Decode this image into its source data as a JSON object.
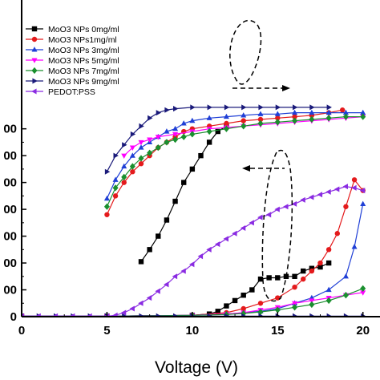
{
  "chart_data": {
    "type": "line",
    "xlabel": "Voltage (V)",
    "ylabel": "",
    "xlim": [
      0,
      21
    ],
    "ylim": [
      0,
      1180
    ],
    "xticks": [
      0,
      5,
      10,
      15,
      20
    ],
    "xtick_labels": [
      "0",
      "5",
      "10",
      "15",
      "20"
    ],
    "yticks": [
      0,
      100,
      200,
      300,
      400,
      500,
      600,
      700
    ],
    "ytick_labels": [
      "0",
      "00",
      "00",
      "00",
      "00",
      "00",
      "00",
      "00"
    ],
    "legend_position": "top-left",
    "grid": false,
    "series": [
      {
        "name": "MoO3 NPs 0mg/ml",
        "color": "#000000",
        "marker": "square",
        "groups": [
          [
            [
              7,
              205
            ],
            [
              7.5,
              250
            ],
            [
              8,
              300
            ],
            [
              8.5,
              360
            ],
            [
              9,
              430
            ],
            [
              9.5,
              500
            ],
            [
              10,
              550
            ],
            [
              10.5,
              600
            ],
            [
              11,
              650
            ],
            [
              11.5,
              690
            ],
            [
              12,
              710
            ]
          ],
          [
            [
              0,
              2
            ],
            [
              5,
              2
            ],
            [
              10,
              5
            ],
            [
              11,
              10
            ],
            [
              11.5,
              20
            ],
            [
              12,
              40
            ],
            [
              12.5,
              60
            ],
            [
              13,
              80
            ],
            [
              13.5,
              100
            ],
            [
              14,
              140
            ],
            [
              14.5,
              145
            ],
            [
              15,
              145
            ],
            [
              15.5,
              150
            ],
            [
              16,
              150
            ],
            [
              16.5,
              170
            ],
            [
              17,
              180
            ],
            [
              17.5,
              185
            ],
            [
              18,
              200
            ]
          ]
        ]
      },
      {
        "name": "MoO3 NPs1mg/ml",
        "color": "#e41a1c",
        "marker": "circle",
        "groups": [
          [
            [
              5,
              380
            ],
            [
              5.5,
              450
            ],
            [
              6,
              500
            ],
            [
              6.5,
              540
            ],
            [
              7,
              570
            ],
            [
              7.5,
              600
            ],
            [
              8,
              630
            ],
            [
              8.5,
              650
            ],
            [
              9,
              670
            ],
            [
              9.5,
              690
            ],
            [
              10,
              700
            ],
            [
              11,
              710
            ],
            [
              12,
              720
            ],
            [
              13,
              730
            ],
            [
              14,
              735
            ],
            [
              15,
              740
            ],
            [
              16,
              745
            ],
            [
              17,
              750
            ],
            [
              18,
              760
            ],
            [
              18.8,
              770
            ]
          ],
          [
            [
              0,
              2
            ],
            [
              5,
              2
            ],
            [
              10,
              5
            ],
            [
              12,
              15
            ],
            [
              13,
              30
            ],
            [
              14,
              50
            ],
            [
              15,
              70
            ],
            [
              16,
              110
            ],
            [
              16.5,
              140
            ],
            [
              17,
              170
            ],
            [
              17.5,
              200
            ],
            [
              18,
              250
            ],
            [
              18.5,
              310
            ],
            [
              19,
              410
            ],
            [
              19.5,
              510
            ],
            [
              20,
              470
            ]
          ]
        ]
      },
      {
        "name": "MoO3 NPs 3mg/ml",
        "color": "#1f3fd6",
        "marker": "triangle-up",
        "groups": [
          [
            [
              5,
              440
            ],
            [
              5.5,
              510
            ],
            [
              6,
              560
            ],
            [
              6.5,
              600
            ],
            [
              7,
              630
            ],
            [
              7.5,
              650
            ],
            [
              8,
              670
            ],
            [
              8.5,
              690
            ],
            [
              9,
              700
            ],
            [
              9.5,
              720
            ],
            [
              10,
              730
            ],
            [
              11,
              740
            ],
            [
              12,
              745
            ],
            [
              13,
              750
            ],
            [
              14,
              755
            ],
            [
              15,
              755
            ],
            [
              16,
              760
            ],
            [
              17,
              760
            ],
            [
              18,
              760
            ],
            [
              19,
              760
            ],
            [
              20,
              760
            ]
          ],
          [
            [
              0,
              2
            ],
            [
              5,
              2
            ],
            [
              10,
              5
            ],
            [
              12,
              10
            ],
            [
              14,
              20
            ],
            [
              15,
              30
            ],
            [
              16,
              50
            ],
            [
              17,
              70
            ],
            [
              18,
              100
            ],
            [
              19,
              150
            ],
            [
              19.5,
              260
            ],
            [
              20,
              420
            ]
          ]
        ]
      },
      {
        "name": "MoO3 NPs 5mg/ml",
        "color": "#ff00ff",
        "marker": "triangle-down",
        "groups": [
          [
            [
              6,
              600
            ],
            [
              6.5,
              630
            ],
            [
              7,
              650
            ],
            [
              7.5,
              660
            ],
            [
              8,
              670
            ],
            [
              9,
              680
            ],
            [
              10,
              690
            ],
            [
              11,
              700
            ],
            [
              12,
              705
            ],
            [
              13,
              710
            ],
            [
              14,
              715
            ],
            [
              15,
              720
            ],
            [
              16,
              725
            ],
            [
              17,
              730
            ],
            [
              18,
              735
            ],
            [
              19,
              740
            ],
            [
              20,
              745
            ]
          ],
          [
            [
              0,
              2
            ],
            [
              5,
              2
            ],
            [
              10,
              5
            ],
            [
              12,
              10
            ],
            [
              13,
              15
            ],
            [
              14,
              25
            ],
            [
              15,
              35
            ],
            [
              16,
              50
            ],
            [
              17,
              60
            ],
            [
              18,
              70
            ],
            [
              19,
              80
            ],
            [
              20,
              90
            ]
          ]
        ]
      },
      {
        "name": "MoO3 NPs 7mg/ml",
        "color": "#1a8f2e",
        "marker": "diamond",
        "groups": [
          [
            [
              5,
              410
            ],
            [
              5.5,
              480
            ],
            [
              6,
              520
            ],
            [
              6.5,
              560
            ],
            [
              7,
              590
            ],
            [
              7.5,
              610
            ],
            [
              8,
              630
            ],
            [
              8.5,
              650
            ],
            [
              9,
              660
            ],
            [
              9.5,
              670
            ],
            [
              10,
              680
            ],
            [
              11,
              690
            ],
            [
              12,
              700
            ],
            [
              13,
              710
            ],
            [
              14,
              720
            ],
            [
              15,
              725
            ],
            [
              16,
              730
            ],
            [
              17,
              735
            ],
            [
              18,
              740
            ],
            [
              19,
              745
            ],
            [
              20,
              745
            ]
          ],
          [
            [
              0,
              2
            ],
            [
              5,
              2
            ],
            [
              10,
              5
            ],
            [
              12,
              8
            ],
            [
              13,
              12
            ],
            [
              14,
              18
            ],
            [
              15,
              25
            ],
            [
              16,
              35
            ],
            [
              17,
              45
            ],
            [
              18,
              60
            ],
            [
              19,
              80
            ],
            [
              20,
              105
            ]
          ]
        ]
      },
      {
        "name": "MoO3 NPs 9mg/ml",
        "color": "#1a1a7a",
        "marker": "triangle-right",
        "groups": [
          [
            [
              5,
              540
            ],
            [
              5.5,
              600
            ],
            [
              6,
              640
            ],
            [
              6.5,
              680
            ],
            [
              7,
              710
            ],
            [
              7.5,
              740
            ],
            [
              8,
              760
            ],
            [
              8.5,
              770
            ],
            [
              9,
              775
            ],
            [
              10,
              780
            ],
            [
              11,
              780
            ],
            [
              12,
              780
            ],
            [
              13,
              780
            ],
            [
              14,
              780
            ],
            [
              15,
              780
            ],
            [
              16,
              780
            ],
            [
              17,
              780
            ],
            [
              18,
              780
            ]
          ],
          [
            [
              0,
              2
            ],
            [
              1,
              2
            ],
            [
              2,
              2
            ],
            [
              3,
              2
            ],
            [
              4,
              2
            ],
            [
              5,
              2
            ],
            [
              6,
              2
            ],
            [
              7,
              2
            ],
            [
              8,
              2
            ],
            [
              9,
              2
            ],
            [
              10,
              2
            ],
            [
              11,
              2
            ],
            [
              12,
              2
            ],
            [
              13,
              2
            ],
            [
              14,
              2
            ],
            [
              15,
              2
            ],
            [
              16,
              2
            ],
            [
              17,
              2
            ],
            [
              18,
              2
            ],
            [
              19,
              2
            ],
            [
              20,
              2
            ]
          ]
        ]
      },
      {
        "name": "PEDOT:PSS",
        "color": "#8a2be2",
        "marker": "triangle-left",
        "groups": [
          [
            [
              0,
              2
            ],
            [
              1,
              2
            ],
            [
              2,
              2
            ],
            [
              3,
              2
            ],
            [
              4,
              2
            ],
            [
              5,
              2
            ],
            [
              5.5,
              5
            ],
            [
              6,
              15
            ],
            [
              6.5,
              30
            ],
            [
              7,
              50
            ],
            [
              7.5,
              70
            ],
            [
              8,
              95
            ],
            [
              8.5,
              120
            ],
            [
              9,
              150
            ],
            [
              9.5,
              170
            ],
            [
              10,
              195
            ],
            [
              10.5,
              225
            ],
            [
              11,
              250
            ],
            [
              11.5,
              270
            ],
            [
              12,
              290
            ],
            [
              12.5,
              310
            ],
            [
              13,
              330
            ],
            [
              13.5,
              350
            ],
            [
              14,
              370
            ],
            [
              14.5,
              380
            ],
            [
              15,
              400
            ],
            [
              15.5,
              410
            ],
            [
              16,
              420
            ],
            [
              16.5,
              435
            ],
            [
              17,
              445
            ],
            [
              17.5,
              455
            ],
            [
              18,
              465
            ],
            [
              18.5,
              475
            ],
            [
              19,
              485
            ],
            [
              19.5,
              480
            ],
            [
              20,
              470
            ]
          ]
        ]
      }
    ]
  }
}
